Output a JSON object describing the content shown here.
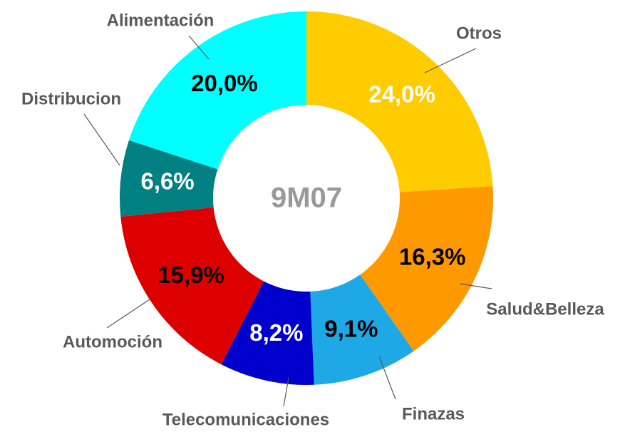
{
  "chart_data": {
    "type": "donut",
    "center_label": "9M07",
    "categories": [
      "Otros",
      "Salud&Belleza",
      "Finazas",
      "Telecomunicaciones",
      "Automoción",
      "Distribucion",
      "Alimentación"
    ],
    "values": [
      24.0,
      16.3,
      9.1,
      8.2,
      15.9,
      6.6,
      20.0
    ],
    "value_labels": [
      "24,0%",
      "16,3%",
      "9,1%",
      "8,2%",
      "15,9%",
      "6,6%",
      "20,0%"
    ],
    "colors": [
      "#ffcc00",
      "#ff9900",
      "#1fa8e6",
      "#0000cc",
      "#dd0000",
      "#008080",
      "#00ffff"
    ],
    "value_label_colors": [
      "#ffffff",
      "#000000",
      "#000000",
      "#ffffff",
      "#000000",
      "#ffffff",
      "#000000"
    ]
  }
}
